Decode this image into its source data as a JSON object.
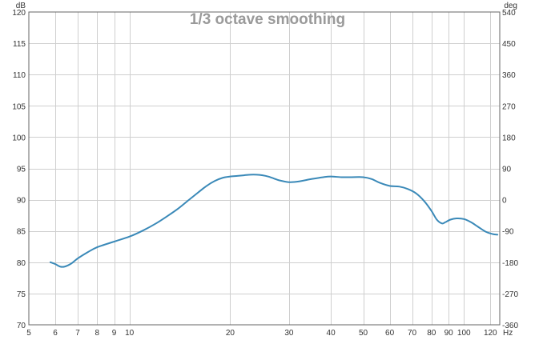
{
  "chart_data": {
    "type": "line",
    "title": "1/3 octave smoothing",
    "y_unit_left": "dB",
    "y_unit_right": "deg",
    "x_unit": "Hz",
    "x_scale": "log",
    "xlim": [
      5,
      128
    ],
    "ylim": [
      70,
      120
    ],
    "ylim_right": [
      -360,
      540
    ],
    "x_ticks": [
      5,
      6,
      7,
      8,
      9,
      10,
      20,
      30,
      40,
      50,
      60,
      70,
      80,
      90,
      100,
      120
    ],
    "x_tick_labels": [
      "5",
      "6",
      "7",
      "8",
      "9",
      "10",
      "20",
      "30",
      "40",
      "50",
      "60",
      "70",
      "80",
      "90",
      "100",
      "120"
    ],
    "y_ticks": [
      70,
      75,
      80,
      85,
      90,
      95,
      100,
      105,
      110,
      115,
      120
    ],
    "y_tick_labels": [
      "70",
      "75",
      "80",
      "85",
      "90",
      "95",
      "100",
      "105",
      "110",
      "115",
      "120"
    ],
    "y_ticks_right_labels": [
      "-360",
      "-270",
      "-180",
      "-90",
      "0",
      "90",
      "180",
      "270",
      "360",
      "450",
      "540"
    ],
    "grid": true,
    "series": [
      {
        "color": "#3a89b8",
        "x": [
          5.8,
          6.0,
          6.2,
          6.4,
          6.7,
          7.0,
          7.5,
          8.0,
          9.0,
          10.0,
          11.0,
          12.0,
          13.0,
          14.0,
          15.0,
          16.0,
          17.0,
          18.0,
          19.0,
          20.0,
          21.0,
          22.0,
          23.0,
          24.0,
          25.0,
          26.0,
          27.0,
          28.0,
          30.0,
          32.0,
          35.0,
          38.0,
          40.0,
          43.0,
          46.0,
          50.0,
          53.0,
          56.0,
          60.0,
          64.0,
          68.0,
          72.0,
          76.0,
          80.0,
          83.0,
          86.0,
          88.0,
          91.0,
          95.0,
          100.0,
          105.0,
          110.0,
          116.0,
          122.0,
          126.0
        ],
        "y": [
          80.0,
          79.7,
          79.3,
          79.3,
          79.8,
          80.6,
          81.6,
          82.4,
          83.3,
          84.1,
          85.1,
          86.2,
          87.4,
          88.6,
          89.9,
          91.1,
          92.2,
          93.0,
          93.5,
          93.7,
          93.8,
          93.9,
          94.0,
          94.0,
          93.9,
          93.7,
          93.4,
          93.1,
          92.8,
          92.9,
          93.3,
          93.6,
          93.7,
          93.6,
          93.6,
          93.6,
          93.3,
          92.7,
          92.2,
          92.1,
          91.7,
          91.0,
          89.8,
          88.2,
          86.8,
          86.2,
          86.4,
          86.8,
          87.0,
          86.9,
          86.4,
          85.7,
          84.9,
          84.5,
          84.4
        ]
      }
    ]
  }
}
